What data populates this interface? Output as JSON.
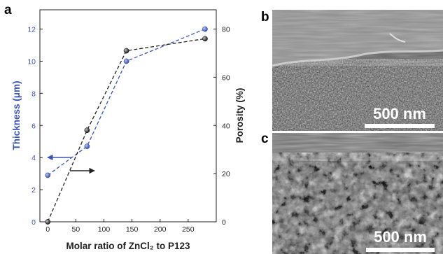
{
  "figure": {
    "panels": {
      "a": {
        "letter": "a"
      },
      "b": {
        "letter": "b",
        "scale_bar": "500 nm"
      },
      "c": {
        "letter": "c",
        "scale_bar": "500 nm"
      }
    }
  },
  "chart_data": {
    "type": "line",
    "xlabel": "Molar ratio of ZnCl₂ to P123",
    "x_ticks": [
      0,
      50,
      100,
      150,
      200,
      250
    ],
    "xlim": [
      -14,
      300
    ],
    "y_left": {
      "label": "Thickness (μm)",
      "ticks": [
        0,
        2,
        4,
        6,
        8,
        10,
        12
      ],
      "lim": [
        0,
        13.2
      ]
    },
    "y_right": {
      "label": "Porosity (%)",
      "ticks": [
        0,
        20,
        40,
        60,
        80
      ],
      "lim": [
        0,
        88
      ]
    },
    "grid": false,
    "series": [
      {
        "axis": "left",
        "color": "#3a54b4",
        "style": "dashed",
        "x": [
          0,
          70,
          140,
          280
        ],
        "y": [
          2.9,
          4.7,
          10.0,
          12.0
        ]
      },
      {
        "axis": "right",
        "color": "#222222",
        "style": "dashed",
        "x": [
          0,
          70,
          140,
          280
        ],
        "y": [
          0,
          38,
          71,
          76
        ]
      }
    ],
    "arrows": [
      {
        "direction": "left",
        "axis": "left",
        "color": "#3a54b4"
      },
      {
        "direction": "right",
        "axis": "right",
        "color": "#222222"
      }
    ]
  }
}
